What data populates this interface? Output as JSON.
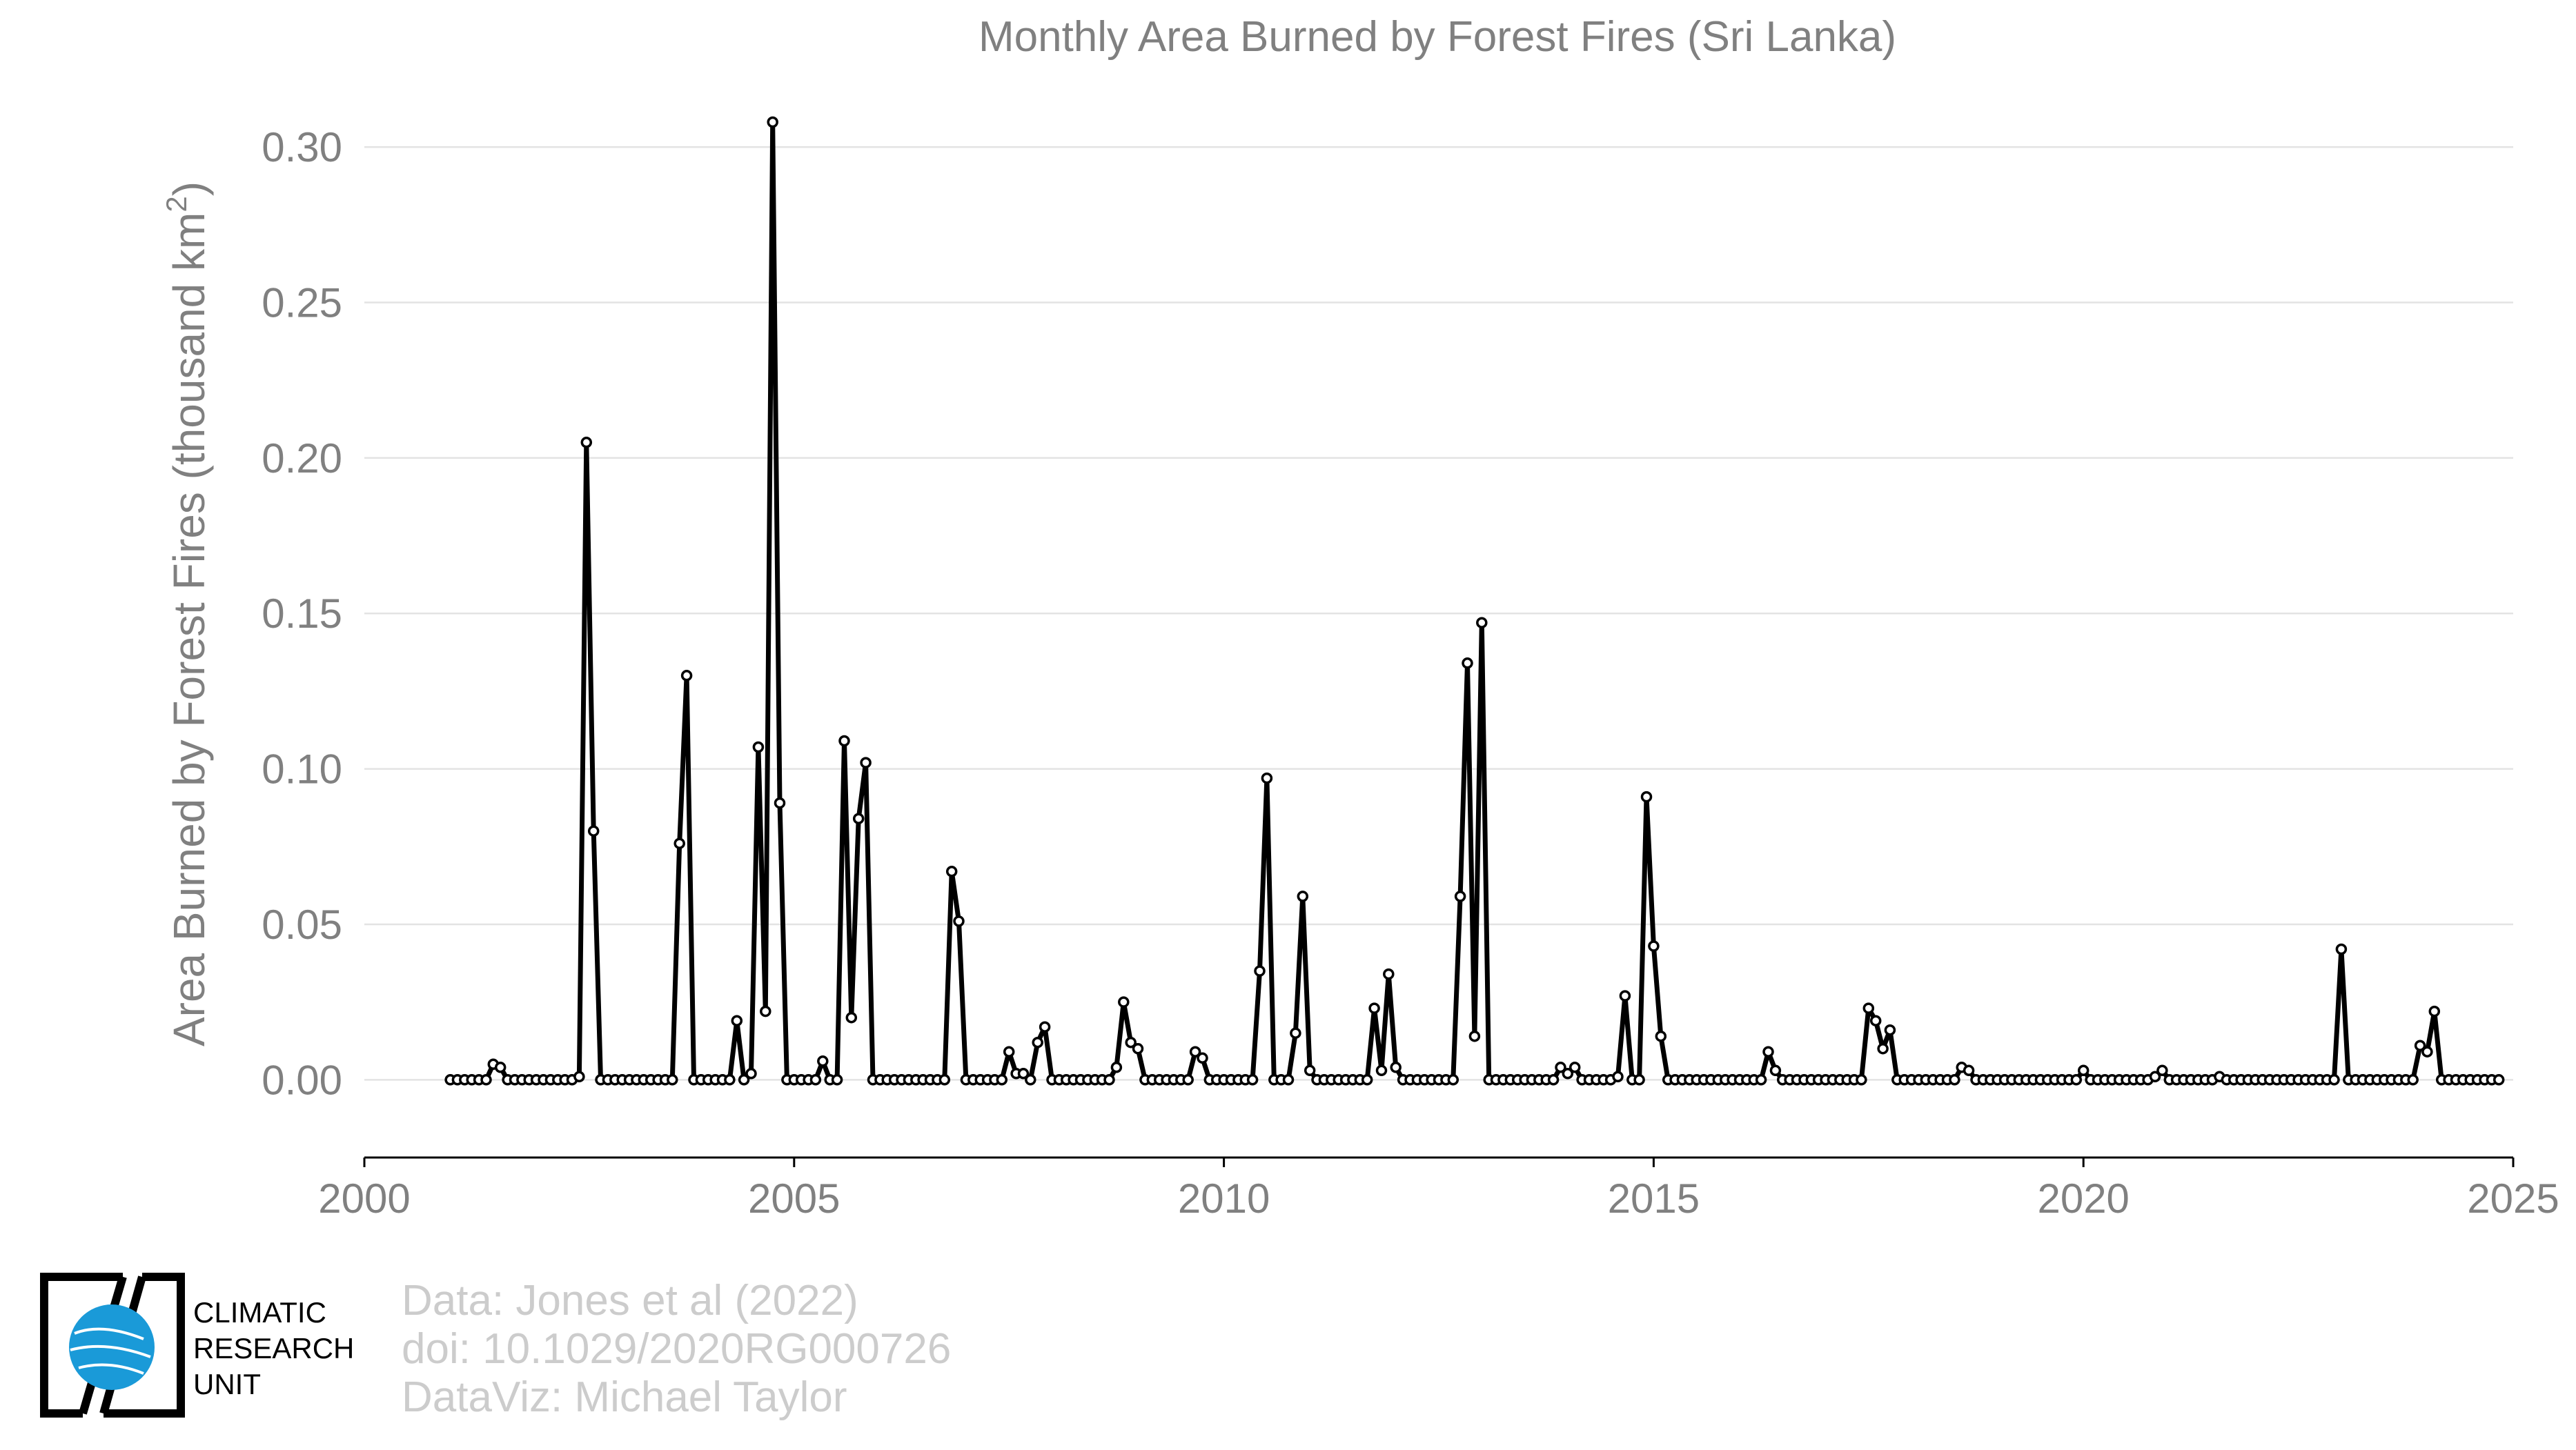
{
  "chart_data": {
    "type": "line",
    "title": "Monthly Area Burned by Forest Fires (Sri Lanka)",
    "ylabel": "Area Burned by Forest Fires (thousand km²)",
    "xlabel": "",
    "xlim": [
      2000,
      2025
    ],
    "ylim": [
      -0.025,
      0.31
    ],
    "xticks": [
      {
        "value": 2000,
        "label": "2000"
      },
      {
        "value": 2005,
        "label": "2005"
      },
      {
        "value": 2010,
        "label": "2010"
      },
      {
        "value": 2015,
        "label": "2015"
      },
      {
        "value": 2020,
        "label": "2020"
      },
      {
        "value": 2025,
        "label": "2025"
      }
    ],
    "yticks": [
      {
        "value": 0.0,
        "label": "0.00"
      },
      {
        "value": 0.05,
        "label": "0.05"
      },
      {
        "value": 0.1,
        "label": "0.10"
      },
      {
        "value": 0.15,
        "label": "0.15"
      },
      {
        "value": 0.2,
        "label": "0.20"
      },
      {
        "value": 0.25,
        "label": "0.25"
      },
      {
        "value": 0.3,
        "label": "0.30"
      }
    ],
    "grid": "horizontal",
    "legend": "none",
    "series": [
      {
        "start": "2001-01",
        "frequency": "monthly",
        "values": [
          0,
          0,
          0,
          0,
          0,
          0,
          0.005,
          0.004,
          0,
          0,
          0,
          0,
          0,
          0,
          0,
          0,
          0,
          0,
          0.001,
          0.205,
          0.08,
          0,
          0,
          0,
          0,
          0,
          0,
          0,
          0,
          0,
          0,
          0,
          0.076,
          0.13,
          0,
          0,
          0,
          0,
          0,
          0,
          0.019,
          0,
          0.002,
          0.107,
          0.022,
          0.308,
          0.089,
          0,
          0,
          0,
          0,
          0,
          0.006,
          0,
          0,
          0.109,
          0.02,
          0.084,
          0.102,
          0,
          0,
          0,
          0,
          0,
          0,
          0,
          0,
          0,
          0,
          0,
          0.067,
          0.051,
          0,
          0,
          0,
          0,
          0,
          0,
          0.009,
          0.002,
          0.002,
          0,
          0.012,
          0.017,
          0,
          0,
          0,
          0,
          0,
          0,
          0,
          0,
          0,
          0.004,
          0.025,
          0.012,
          0.01,
          0,
          0,
          0,
          0,
          0,
          0,
          0,
          0.009,
          0.007,
          0,
          0,
          0,
          0,
          0,
          0,
          0,
          0.035,
          0.097,
          0,
          0,
          0,
          0.015,
          0.059,
          0.003,
          0,
          0,
          0,
          0,
          0,
          0,
          0,
          0,
          0.023,
          0.003,
          0.034,
          0.004,
          0,
          0,
          0,
          0,
          0,
          0,
          0,
          0,
          0.059,
          0.134,
          0.014,
          0.147,
          0,
          0,
          0,
          0,
          0,
          0,
          0,
          0,
          0,
          0,
          0.004,
          0.002,
          0.004,
          0,
          0,
          0,
          0,
          0,
          0.001,
          0.027,
          0,
          0,
          0.091,
          0.043,
          0.014,
          0,
          0,
          0,
          0,
          0,
          0,
          0,
          0,
          0,
          0,
          0,
          0,
          0,
          0,
          0.009,
          0.003,
          0,
          0,
          0,
          0,
          0,
          0,
          0,
          0,
          0,
          0,
          0,
          0,
          0.023,
          0.019,
          0.01,
          0.016,
          0,
          0,
          0,
          0,
          0,
          0,
          0,
          0,
          0,
          0.004,
          0.003,
          0,
          0,
          0,
          0,
          0,
          0,
          0,
          0,
          0,
          0,
          0,
          0,
          0,
          0,
          0,
          0.003,
          0,
          0,
          0,
          0,
          0,
          0,
          0,
          0,
          0,
          0.001,
          0.003,
          0,
          0,
          0,
          0,
          0,
          0,
          0,
          0.001,
          0,
          0,
          0,
          0,
          0,
          0,
          0,
          0,
          0,
          0,
          0,
          0,
          0,
          0,
          0,
          0,
          0.042,
          0,
          0,
          0,
          0,
          0,
          0,
          0,
          0,
          0,
          0,
          0.011,
          0.009,
          0.022,
          0,
          0,
          0,
          0,
          0,
          0,
          0,
          0,
          0
        ]
      }
    ]
  },
  "credits": {
    "line1": "Data: Jones et al (2022)",
    "line2": "doi: 10.1029/2020RG000726",
    "line3": "DataViz: Michael Taylor"
  },
  "logo": {
    "line1": "CLIMATIC",
    "line2": "RESEARCH",
    "line3": "UNIT",
    "color": "#1a9ad8"
  }
}
